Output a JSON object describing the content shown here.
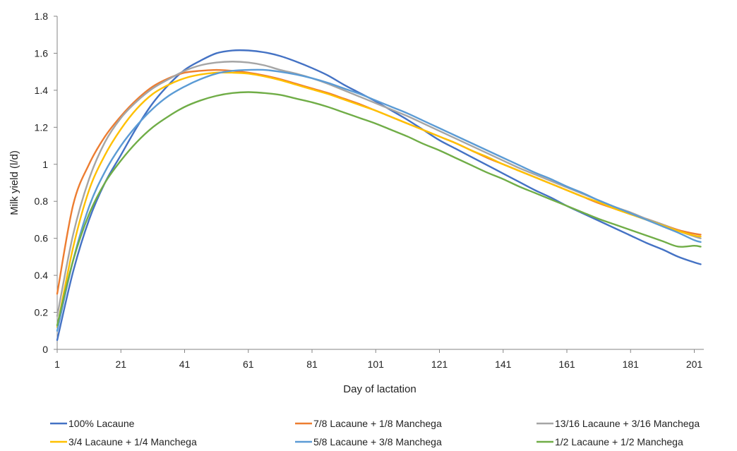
{
  "chart_data": {
    "type": "line",
    "title": "",
    "xlabel": "Day of lactation",
    "ylabel": "Milk yield (l/d)",
    "xlim": [
      1,
      203
    ],
    "ylim": [
      0,
      1.8
    ],
    "x_ticks": [
      "1",
      "21",
      "41",
      "61",
      "81",
      "101",
      "121",
      "141",
      "161",
      "181",
      "201"
    ],
    "y_ticks": [
      "0",
      "0.2",
      "0.4",
      "0.6",
      "0.8",
      "1",
      "1.2",
      "1.4",
      "1.6",
      "1.8"
    ],
    "grid": false,
    "legend_position": "bottom",
    "x": [
      1,
      6,
      11,
      16,
      21,
      26,
      31,
      36,
      41,
      46,
      51,
      56,
      61,
      66,
      71,
      76,
      81,
      86,
      91,
      96,
      101,
      106,
      111,
      116,
      121,
      126,
      131,
      136,
      141,
      146,
      151,
      156,
      161,
      166,
      171,
      176,
      181,
      186,
      191,
      196,
      201,
      203
    ],
    "series": [
      {
        "name": "100% Lacaune",
        "color": "#4472C4",
        "values": [
          0.05,
          0.42,
          0.7,
          0.9,
          1.05,
          1.2,
          1.33,
          1.43,
          1.51,
          1.56,
          1.6,
          1.615,
          1.615,
          1.605,
          1.585,
          1.555,
          1.52,
          1.48,
          1.43,
          1.385,
          1.34,
          1.29,
          1.24,
          1.185,
          1.13,
          1.085,
          1.04,
          0.995,
          0.95,
          0.905,
          0.86,
          0.82,
          0.775,
          0.735,
          0.695,
          0.655,
          0.615,
          0.575,
          0.54,
          0.5,
          0.47,
          0.46
        ]
      },
      {
        "name": "7/8 Lacaune + 1/8 Manchega",
        "color": "#ED7D31",
        "values": [
          0.3,
          0.78,
          1.0,
          1.15,
          1.26,
          1.35,
          1.42,
          1.465,
          1.495,
          1.505,
          1.51,
          1.505,
          1.495,
          1.48,
          1.46,
          1.435,
          1.41,
          1.385,
          1.355,
          1.325,
          1.29,
          1.255,
          1.22,
          1.185,
          1.15,
          1.115,
          1.075,
          1.035,
          1.0,
          0.965,
          0.93,
          0.895,
          0.86,
          0.825,
          0.79,
          0.76,
          0.73,
          0.705,
          0.675,
          0.645,
          0.625,
          0.62
        ]
      },
      {
        "name": "13/16 Lacaune + 3/16 Manchega",
        "color": "#A5A5A5",
        "values": [
          0.18,
          0.62,
          0.92,
          1.12,
          1.25,
          1.34,
          1.41,
          1.46,
          1.505,
          1.535,
          1.55,
          1.555,
          1.55,
          1.535,
          1.51,
          1.49,
          1.465,
          1.435,
          1.4,
          1.365,
          1.33,
          1.295,
          1.26,
          1.22,
          1.18,
          1.14,
          1.1,
          1.06,
          1.02,
          0.98,
          0.945,
          0.91,
          0.875,
          0.84,
          0.805,
          0.77,
          0.74,
          0.705,
          0.675,
          0.64,
          0.61,
          0.6
        ]
      },
      {
        "name": "3/4 Lacaune + 1/4 Manchega",
        "color": "#FFC000",
        "values": [
          0.12,
          0.55,
          0.86,
          1.05,
          1.19,
          1.3,
          1.38,
          1.43,
          1.465,
          1.485,
          1.495,
          1.495,
          1.49,
          1.475,
          1.455,
          1.43,
          1.405,
          1.38,
          1.35,
          1.32,
          1.29,
          1.255,
          1.22,
          1.185,
          1.15,
          1.115,
          1.075,
          1.04,
          1.0,
          0.965,
          0.93,
          0.895,
          0.86,
          0.825,
          0.795,
          0.76,
          0.73,
          0.7,
          0.67,
          0.64,
          0.615,
          0.61
        ]
      },
      {
        "name": "5/8 Lacaune + 3/8 Manchega",
        "color": "#5B9BD5",
        "values": [
          0.1,
          0.48,
          0.77,
          0.96,
          1.1,
          1.21,
          1.3,
          1.37,
          1.42,
          1.46,
          1.49,
          1.505,
          1.51,
          1.51,
          1.5,
          1.485,
          1.465,
          1.44,
          1.41,
          1.38,
          1.345,
          1.31,
          1.275,
          1.235,
          1.195,
          1.155,
          1.115,
          1.075,
          1.035,
          0.995,
          0.955,
          0.92,
          0.88,
          0.845,
          0.805,
          0.77,
          0.735,
          0.7,
          0.665,
          0.63,
          0.59,
          0.58
        ]
      },
      {
        "name": "1/2 Lacaune + 1/2 Manchega",
        "color": "#70AD47",
        "values": [
          0.13,
          0.48,
          0.73,
          0.9,
          1.02,
          1.12,
          1.2,
          1.26,
          1.31,
          1.345,
          1.37,
          1.385,
          1.39,
          1.385,
          1.375,
          1.355,
          1.335,
          1.31,
          1.28,
          1.25,
          1.22,
          1.185,
          1.15,
          1.11,
          1.075,
          1.035,
          0.995,
          0.955,
          0.92,
          0.88,
          0.845,
          0.81,
          0.775,
          0.74,
          0.705,
          0.675,
          0.645,
          0.615,
          0.585,
          0.555,
          0.56,
          0.555
        ]
      }
    ]
  }
}
